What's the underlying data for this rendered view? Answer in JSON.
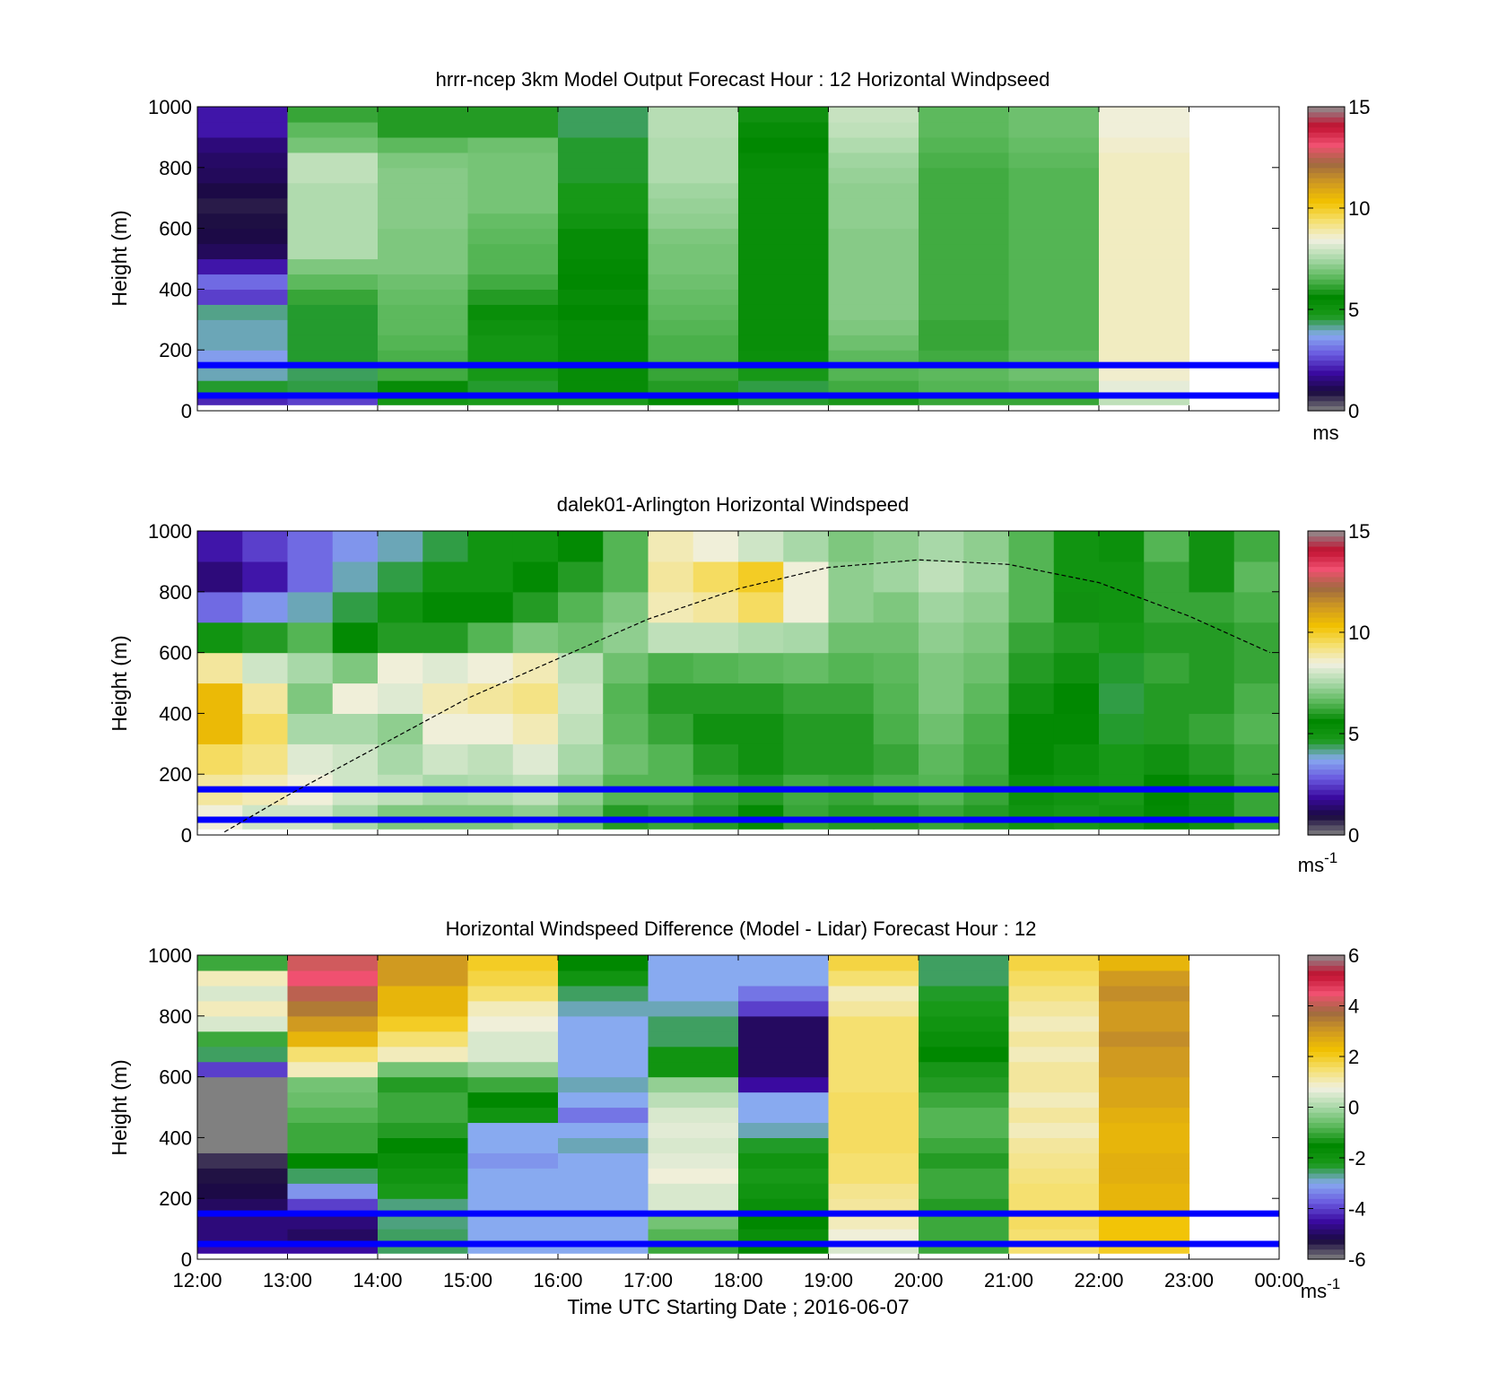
{
  "figure": {
    "xlabel": "Time UTC  Starting Date ; 2016-06-07",
    "x_ticks": [
      "12:00",
      "13:00",
      "14:00",
      "15:00",
      "16:00",
      "17:00",
      "18:00",
      "19:00",
      "20:00",
      "21:00",
      "22:00",
      "23:00",
      "00:00"
    ]
  },
  "colors": {
    "reference_line": "#0000ff",
    "boundary_layer_line": "#000000",
    "speed_colormap": [
      "#808080",
      "#1a0a40",
      "#3a0aa0",
      "#6a5ae0",
      "#88aaf0",
      "#1a9a1a",
      "#008800",
      "#5ab85a",
      "#a8d8a8",
      "#f0f0e0",
      "#f5e070",
      "#f2c200",
      "#d09a20",
      "#a06a40",
      "#f05070",
      "#c01030",
      "#909090"
    ],
    "diff_colormap": [
      "#808080",
      "#1a0a40",
      "#3a0aa0",
      "#6a5ae0",
      "#88aaf0",
      "#1a9a1a",
      "#008800",
      "#5ab85a",
      "#a8d8a8",
      "#f0f0e0",
      "#f5e070",
      "#f2c200",
      "#d09a20",
      "#a06a40",
      "#f05070",
      "#c01030",
      "#909090"
    ]
  },
  "chart_data": [
    {
      "type": "heatmap",
      "title": "hrrr-ncep 3km Model Output   Forecast Hour : 12 Horizontal Windpseed",
      "ylabel": "Height (m)",
      "xlim": [
        12,
        24
      ],
      "ylim": [
        0,
        1000
      ],
      "y_ticks": [
        0,
        200,
        400,
        600,
        800,
        1000
      ],
      "colorbar": {
        "min": 0,
        "max": 15,
        "ticks": [
          0,
          5,
          10,
          15
        ],
        "unit": "ms"
      },
      "reference_lines_m": [
        150,
        50
      ],
      "hours": [
        12,
        13,
        14,
        15,
        16,
        17,
        18,
        19,
        20,
        21,
        22
      ],
      "heights_m": [
        25,
        75,
        125,
        175,
        225,
        275,
        325,
        375,
        425,
        475,
        525,
        575,
        625,
        675,
        725,
        775,
        825,
        875,
        925,
        975
      ],
      "values": [
        [
          2.2,
          4.6,
          4.0,
          3.6,
          4.0,
          4.0,
          4.2,
          2.5,
          3.0,
          2.0,
          1.2,
          1.0,
          0.9,
          0.8,
          1.0,
          1.2,
          1.3,
          1.5,
          2.0,
          2.0
        ],
        [
          2.5,
          4.5,
          4.4,
          4.6,
          4.6,
          4.6,
          4.6,
          6.2,
          6.6,
          7.0,
          7.6,
          7.6,
          7.6,
          7.6,
          7.6,
          7.8,
          7.8,
          6.9,
          6.6,
          6.2
        ],
        [
          4.9,
          5.7,
          6.3,
          6.4,
          6.5,
          6.6,
          6.6,
          6.7,
          6.8,
          7.0,
          7.0,
          7.0,
          7.1,
          7.1,
          7.1,
          7.1,
          7.0,
          6.6,
          6.0,
          6.0
        ],
        [
          4.7,
          4.6,
          4.8,
          4.9,
          4.9,
          5.1,
          5.3,
          6.0,
          6.3,
          6.5,
          6.5,
          6.6,
          6.7,
          6.9,
          6.9,
          6.9,
          6.9,
          6.8,
          6.0,
          6.0
        ],
        [
          4.7,
          5.7,
          5.7,
          5.7,
          5.7,
          5.7,
          5.6,
          5.7,
          5.6,
          5.5,
          5.4,
          5.4,
          5.0,
          4.8,
          4.8,
          4.6,
          4.6,
          4.6,
          4.4,
          4.4
        ],
        [
          5.5,
          6.0,
          6.2,
          6.4,
          6.4,
          6.5,
          6.6,
          6.7,
          6.8,
          6.9,
          6.9,
          7.0,
          7.2,
          7.3,
          7.4,
          7.6,
          7.6,
          7.6,
          7.7,
          7.7
        ],
        [
          4.6,
          4.5,
          4.8,
          5.2,
          5.3,
          5.3,
          5.3,
          5.3,
          5.3,
          5.3,
          5.3,
          5.3,
          5.3,
          5.3,
          5.3,
          5.3,
          5.4,
          5.6,
          5.7,
          5.8
        ],
        [
          5.9,
          6.3,
          6.5,
          6.6,
          6.8,
          7.0,
          7.1,
          7.1,
          7.1,
          7.1,
          7.1,
          7.1,
          7.2,
          7.2,
          7.2,
          7.3,
          7.4,
          7.6,
          7.8,
          7.9
        ],
        [
          6.2,
          6.5,
          6.6,
          6.3,
          6.2,
          6.2,
          6.3,
          6.3,
          6.3,
          6.3,
          6.3,
          6.3,
          6.3,
          6.3,
          6.3,
          6.3,
          6.4,
          6.5,
          6.6,
          6.6
        ],
        [
          6.2,
          6.6,
          6.8,
          6.6,
          6.5,
          6.5,
          6.5,
          6.5,
          6.5,
          6.5,
          6.5,
          6.5,
          6.5,
          6.5,
          6.5,
          6.5,
          6.6,
          6.7,
          6.8,
          6.8
        ],
        [
          7.8,
          8.3,
          8.6,
          8.7,
          8.7,
          8.7,
          8.7,
          8.7,
          8.7,
          8.7,
          8.7,
          8.7,
          8.7,
          8.7,
          8.7,
          8.7,
          8.7,
          8.6,
          8.5,
          8.5
        ]
      ]
    },
    {
      "type": "heatmap",
      "title": "dalek01-Arlington  Horizontal Windspeed",
      "ylabel": "Height (m)",
      "xlim": [
        12,
        24
      ],
      "ylim": [
        0,
        1000
      ],
      "y_ticks": [
        0,
        200,
        400,
        600,
        800,
        1000
      ],
      "colorbar": {
        "min": 0,
        "max": 15,
        "ticks": [
          0,
          5,
          10,
          15
        ],
        "unit": "ms",
        "unit_exponent": "-1"
      },
      "reference_lines_m": [
        150,
        50
      ],
      "boundary_layer_height": {
        "hours": [
          12.3,
          13.0,
          14.0,
          15.0,
          16.0,
          17.0,
          18.0,
          19.0,
          20.0,
          21.0,
          22.0,
          23.0,
          23.9
        ],
        "heights_m": [
          10,
          130,
          290,
          450,
          580,
          710,
          810,
          880,
          905,
          890,
          830,
          720,
          600
        ]
      },
      "hours": [
        12.25,
        12.75,
        13.25,
        13.75,
        14.25,
        14.75,
        15.25,
        15.75,
        16.25,
        16.75,
        17.25,
        17.75,
        18.25,
        18.75,
        19.25,
        19.75,
        20.25,
        20.75,
        21.25,
        21.75,
        22.25,
        22.75,
        23.25,
        23.75
      ],
      "heights_m": [
        50,
        150,
        250,
        350,
        450,
        550,
        650,
        750,
        850,
        950
      ],
      "values": [
        [
          8.5,
          9.0,
          9.5,
          10.5,
          10.5,
          9.0,
          5.0,
          3.0,
          1.5,
          2.0
        ],
        [
          8.0,
          8.8,
          9.2,
          9.5,
          9.0,
          8.0,
          6.0,
          3.5,
          2.0,
          2.5
        ],
        [
          8.0,
          8.5,
          8.2,
          7.5,
          7.0,
          7.5,
          6.5,
          4.0,
          3.0,
          3.0
        ],
        [
          7.5,
          8.0,
          8.0,
          7.5,
          8.5,
          7.0,
          5.5,
          4.5,
          4.0,
          3.5
        ],
        [
          7.0,
          7.8,
          7.5,
          7.2,
          8.2,
          8.5,
          6.0,
          5.0,
          4.5,
          4.0
        ],
        [
          7.0,
          7.5,
          8.0,
          8.5,
          8.8,
          8.2,
          6.0,
          5.5,
          5.0,
          4.5
        ],
        [
          7.0,
          7.6,
          7.8,
          8.5,
          9.0,
          8.5,
          6.5,
          5.5,
          5.0,
          5.0
        ],
        [
          7.2,
          7.8,
          8.2,
          8.8,
          9.2,
          8.8,
          7.0,
          6.0,
          5.5,
          5.0
        ],
        [
          6.8,
          7.2,
          7.5,
          7.8,
          8.0,
          7.8,
          6.8,
          6.5,
          6.0,
          5.5
        ],
        [
          6.0,
          6.5,
          6.8,
          6.6,
          6.5,
          6.8,
          7.2,
          7.0,
          6.5,
          6.5
        ],
        [
          6.2,
          6.5,
          6.5,
          6.2,
          6.0,
          6.4,
          7.8,
          8.8,
          9.0,
          8.8
        ],
        [
          6.0,
          6.2,
          6.0,
          5.8,
          6.0,
          6.5,
          7.8,
          9.0,
          9.5,
          8.5
        ],
        [
          5.5,
          6.0,
          5.8,
          5.8,
          6.0,
          6.6,
          7.6,
          9.5,
          10.0,
          8.0
        ],
        [
          6.2,
          6.3,
          6.0,
          6.0,
          6.2,
          6.7,
          7.5,
          8.5,
          8.5,
          7.5
        ],
        [
          6.0,
          6.2,
          6.0,
          6.0,
          6.2,
          6.5,
          6.8,
          7.2,
          7.2,
          7.0
        ],
        [
          6.0,
          6.4,
          6.2,
          6.4,
          6.5,
          6.6,
          6.8,
          7.0,
          7.4,
          7.2
        ],
        [
          6.2,
          6.5,
          6.6,
          6.8,
          7.0,
          7.0,
          7.2,
          7.4,
          7.8,
          7.5
        ],
        [
          6.0,
          6.2,
          6.3,
          6.4,
          6.6,
          6.8,
          7.0,
          7.2,
          7.4,
          7.2
        ],
        [
          5.0,
          5.2,
          5.5,
          5.5,
          5.8,
          6.0,
          6.2,
          6.5,
          6.5,
          6.5
        ],
        [
          4.8,
          5.0,
          5.2,
          5.5,
          5.6,
          5.8,
          6.0,
          5.8,
          5.0,
          5.0
        ],
        [
          5.0,
          4.8,
          4.8,
          4.6,
          4.5,
          4.6,
          4.8,
          5.0,
          5.0,
          5.2
        ],
        [
          5.5,
          5.6,
          5.8,
          6.0,
          6.0,
          6.2,
          6.0,
          6.2,
          6.2,
          6.5
        ],
        [
          5.8,
          5.8,
          6.0,
          6.2,
          6.0,
          6.0,
          6.0,
          6.2,
          5.8,
          5.8
        ],
        [
          6.2,
          6.2,
          6.3,
          6.5,
          6.4,
          6.2,
          6.2,
          6.4,
          6.6,
          6.3
        ]
      ]
    },
    {
      "type": "heatmap",
      "title": "Horizontal Windspeed Difference (Model - Lidar) Forecast Hour : 12",
      "ylabel": "Height (m)",
      "xlim": [
        12,
        24
      ],
      "ylim": [
        0,
        1000
      ],
      "y_ticks": [
        0,
        200,
        400,
        600,
        800,
        1000
      ],
      "colorbar": {
        "min": -6,
        "max": 6,
        "ticks": [
          -6,
          -4,
          -2,
          0,
          2,
          4,
          6
        ],
        "unit": "ms",
        "unit_exponent": "-1"
      },
      "reference_lines_m": [
        150,
        50
      ],
      "hours": [
        12,
        13,
        14,
        15,
        16,
        17,
        18,
        19,
        20,
        21,
        22
      ],
      "heights_m": [
        25,
        75,
        125,
        175,
        225,
        275,
        325,
        375,
        425,
        475,
        525,
        575,
        625,
        675,
        725,
        775,
        825,
        875,
        925,
        975
      ],
      "values": [
        [
          -4.5,
          -4.8,
          -4.8,
          -5.0,
          -5.2,
          -5.3,
          -5.5,
          -6.0,
          -6.0,
          -6.0,
          -6.0,
          -6.0,
          -4.0,
          -2.5,
          -1.0,
          0.5,
          1.0,
          0.5,
          1.0,
          -1.0
        ],
        [
          -4.5,
          -5.0,
          -4.8,
          -4.0,
          -3.2,
          -2.5,
          -1.5,
          -1.0,
          -1.0,
          -0.8,
          -0.6,
          -0.5,
          1.0,
          1.5,
          2.5,
          3.0,
          3.5,
          4.0,
          4.5,
          4.2
        ],
        [
          -2.5,
          -2.5,
          -2.6,
          -2.6,
          -2.2,
          -2.0,
          -1.8,
          -1.5,
          -1.2,
          -1.0,
          -1.0,
          -1.2,
          -0.5,
          1.0,
          1.5,
          2.0,
          2.5,
          2.5,
          3.0,
          3.0
        ],
        [
          -3.0,
          -3.0,
          -3.0,
          -3.0,
          -3.0,
          -3.0,
          -3.2,
          -3.0,
          -3.0,
          -2.0,
          -1.5,
          -1.0,
          -0.2,
          0.5,
          0.5,
          0.8,
          1.0,
          1.5,
          1.8,
          2.0
        ],
        [
          -3.0,
          -3.0,
          -3.0,
          -3.0,
          -3.0,
          -3.0,
          -3.0,
          -2.8,
          -3.0,
          -3.5,
          -3.0,
          -2.8,
          -3.0,
          -3.0,
          -3.0,
          -3.0,
          -2.8,
          -2.5,
          -2.0,
          -1.5
        ],
        [
          -1.0,
          -0.8,
          -0.5,
          0.5,
          0.5,
          0.8,
          0.6,
          0.5,
          0.6,
          0.5,
          0.2,
          -0.2,
          -2.0,
          -2.0,
          -2.5,
          -2.5,
          -2.8,
          -3.0,
          -3.0,
          -3.0
        ],
        [
          -1.5,
          -1.8,
          -1.5,
          -1.8,
          -2.0,
          -2.2,
          -2.0,
          -2.3,
          -2.8,
          -3.0,
          -3.0,
          -4.5,
          -5.0,
          -5.0,
          -5.0,
          -5.0,
          -4.0,
          -3.5,
          -3.0,
          -3.0
        ],
        [
          0.5,
          0.8,
          1.0,
          1.2,
          1.3,
          1.5,
          1.5,
          1.6,
          1.6,
          1.6,
          1.6,
          1.5,
          1.5,
          1.5,
          1.5,
          1.5,
          1.2,
          1.0,
          1.5,
          1.8
        ],
        [
          -1.0,
          -1.0,
          -1.0,
          -1.2,
          -1.0,
          -1.0,
          -1.2,
          -1.0,
          -0.8,
          -0.8,
          -1.0,
          -1.2,
          -1.3,
          -1.5,
          -1.8,
          -2.0,
          -2.2,
          -2.3,
          -2.5,
          -2.5
        ],
        [
          1.5,
          1.5,
          1.6,
          1.5,
          1.5,
          1.4,
          1.3,
          1.2,
          1.0,
          1.2,
          1.0,
          1.2,
          1.2,
          1.0,
          1.2,
          1.0,
          1.2,
          1.4,
          1.6,
          1.8
        ],
        [
          2.0,
          2.2,
          2.2,
          2.5,
          2.5,
          2.6,
          2.6,
          2.5,
          2.5,
          2.6,
          2.8,
          2.8,
          3.0,
          3.0,
          3.2,
          3.0,
          3.0,
          3.2,
          3.0,
          2.5
        ]
      ]
    }
  ]
}
